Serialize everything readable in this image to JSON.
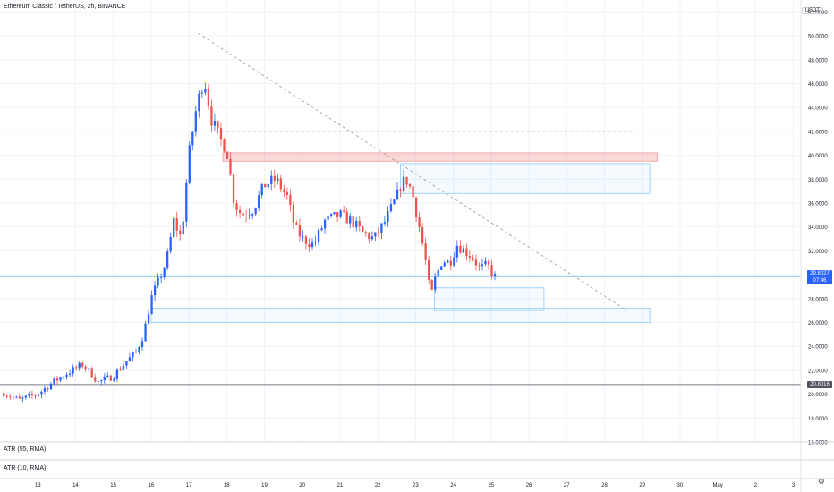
{
  "header": {
    "title": "Ethereum Classic / TetherUS, 2h, BINANCE"
  },
  "panes": [
    {
      "label": "ATR (55, RMA)"
    },
    {
      "label": "ATR (10, RMA)"
    }
  ],
  "axis": {
    "unit": "USDT"
  },
  "icons": {
    "settings": "gear-icon"
  },
  "colors": {
    "up": "#2962ff",
    "down": "#ef5350",
    "grid": "#f0f3fa",
    "zone": "#90caf9",
    "resistance": "#ef9a9a",
    "last_price_bg": "#2962ff",
    "ref_line": "#787b86"
  },
  "chart_data": {
    "type": "candlestick",
    "title": "Ethereum Classic / TetherUS, 2h, BINANCE",
    "ylim": [
      16,
      53
    ],
    "y_ticks": [
      {
        "value": 52,
        "label": "52.0000"
      },
      {
        "value": 50,
        "label": "50.0000"
      },
      {
        "value": 48,
        "label": "48.0000"
      },
      {
        "value": 46,
        "label": "46.0000"
      },
      {
        "value": 44,
        "label": "44.0000"
      },
      {
        "value": 42,
        "label": "42.0000"
      },
      {
        "value": 40,
        "label": "40.0000"
      },
      {
        "value": 38,
        "label": "38.0000"
      },
      {
        "value": 36,
        "label": "36.0000"
      },
      {
        "value": 34,
        "label": "34.0000"
      },
      {
        "value": 32,
        "label": "32.0000"
      },
      {
        "value": 30,
        "label": "30.0000"
      },
      {
        "value": 28,
        "label": "28.0000"
      },
      {
        "value": 26,
        "label": "26.0000"
      },
      {
        "value": 24,
        "label": "24.0000"
      },
      {
        "value": 22,
        "label": "22.0000"
      },
      {
        "value": 20,
        "label": "20.0000"
      },
      {
        "value": 18,
        "label": "18.0000"
      },
      {
        "value": 16,
        "label": "16.0000"
      }
    ],
    "x_ticks": [
      "13",
      "14",
      "15",
      "16",
      "17",
      "18",
      "19",
      "20",
      "21",
      "22",
      "23",
      "24",
      "25",
      "26",
      "27",
      "28",
      "29",
      "30",
      "May",
      "2",
      "3"
    ],
    "last_price": {
      "value": 29.8027,
      "label": "29.8027",
      "countdown": "07:46"
    },
    "ref_price": {
      "value": 20.8016,
      "label": "20.8016"
    },
    "anchors": [
      [
        12.1,
        20.1
      ],
      [
        12.5,
        19.5
      ],
      [
        13.0,
        20.0
      ],
      [
        13.4,
        21.0
      ],
      [
        13.8,
        21.8
      ],
      [
        14.2,
        22.5
      ],
      [
        14.6,
        21.0
      ],
      [
        15.0,
        21.5
      ],
      [
        15.3,
        22.6
      ],
      [
        15.6,
        23.5
      ],
      [
        15.8,
        25.0
      ],
      [
        16.0,
        28.0
      ],
      [
        16.2,
        29.5
      ],
      [
        16.4,
        31.0
      ],
      [
        16.6,
        34.5
      ],
      [
        16.8,
        33.0
      ],
      [
        17.0,
        40.0
      ],
      [
        17.2,
        44.0
      ],
      [
        17.4,
        46.5
      ],
      [
        17.6,
        43.0
      ],
      [
        17.8,
        41.5
      ],
      [
        18.0,
        40.5
      ],
      [
        18.2,
        36.0
      ],
      [
        18.4,
        35.0
      ],
      [
        18.7,
        35.5
      ],
      [
        19.0,
        37.5
      ],
      [
        19.3,
        38.0
      ],
      [
        19.6,
        36.5
      ],
      [
        19.8,
        34.0
      ],
      [
        20.0,
        33.0
      ],
      [
        20.3,
        32.5
      ],
      [
        20.6,
        34.5
      ],
      [
        21.0,
        35.0
      ],
      [
        21.3,
        34.5
      ],
      [
        21.6,
        33.5
      ],
      [
        21.9,
        33.0
      ],
      [
        22.2,
        34.5
      ],
      [
        22.5,
        36.5
      ],
      [
        22.6,
        37.5
      ],
      [
        22.75,
        38.0
      ],
      [
        22.9,
        37.0
      ],
      [
        23.1,
        34.0
      ],
      [
        23.25,
        31.5
      ],
      [
        23.4,
        28.0
      ],
      [
        23.5,
        29.5
      ],
      [
        23.7,
        31.2
      ],
      [
        23.9,
        31.0
      ],
      [
        24.1,
        32.5
      ],
      [
        24.3,
        32.0
      ],
      [
        24.5,
        31.5
      ],
      [
        24.7,
        30.5
      ],
      [
        24.9,
        30.8
      ],
      [
        25.1,
        29.8
      ]
    ],
    "annotations": [
      {
        "kind": "trendline",
        "style": "dashed",
        "from": [
          17.25,
          50.2
        ],
        "to": [
          28.6,
          27.0
        ]
      },
      {
        "kind": "hline",
        "style": "dashed",
        "from_x": 17.85,
        "to_x": 28.8,
        "y": 42.0
      },
      {
        "kind": "zone",
        "color": "resistance",
        "x_from": 17.9,
        "x_to": 29.4,
        "y_from": 39.5,
        "y_to": 40.2
      },
      {
        "kind": "zone",
        "color": "support",
        "x_from": 22.6,
        "x_to": 29.2,
        "y_from": 36.8,
        "y_to": 39.3
      },
      {
        "kind": "zone",
        "color": "support",
        "x_from": 23.5,
        "x_to": 26.4,
        "y_from": 27.0,
        "y_to": 28.9
      },
      {
        "kind": "zone",
        "color": "support",
        "x_from": 16.0,
        "x_to": 29.2,
        "y_from": 26.0,
        "y_to": 27.2
      }
    ]
  }
}
